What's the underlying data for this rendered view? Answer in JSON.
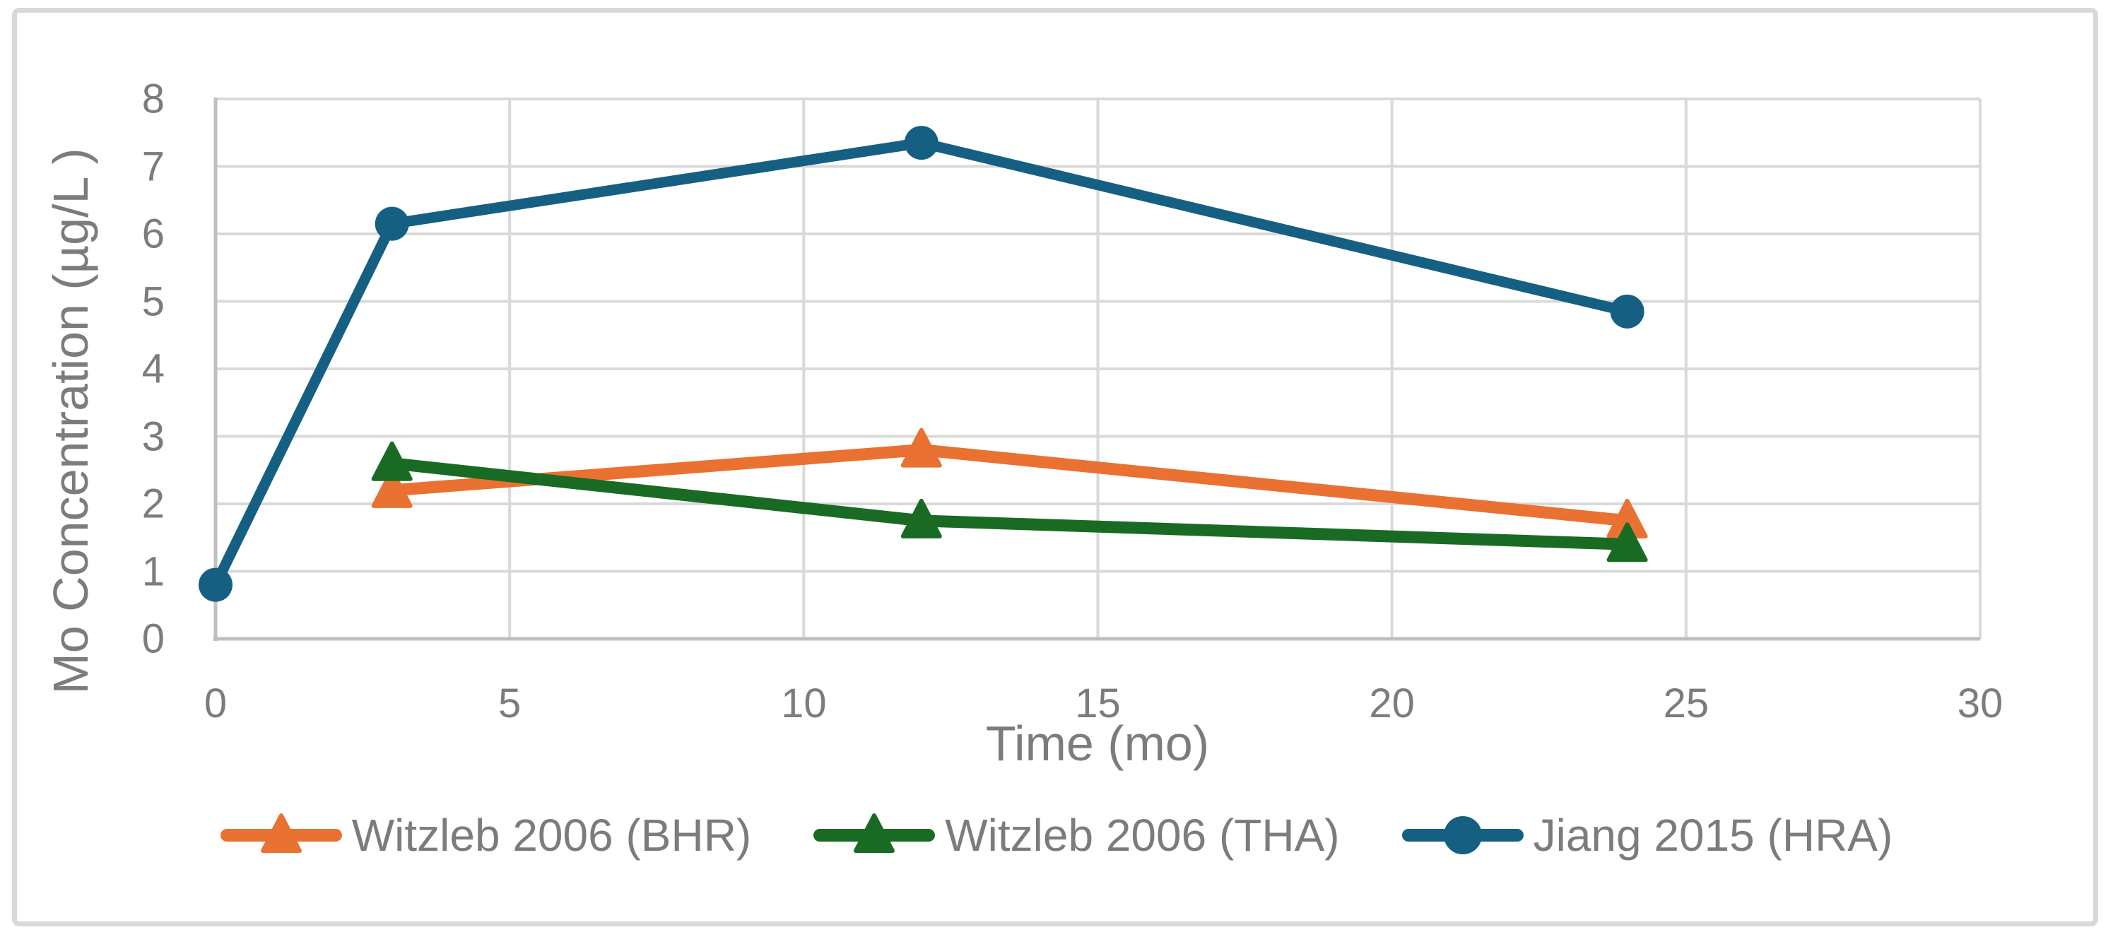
{
  "chart_data": {
    "type": "line",
    "title": "",
    "xlabel": "Time (mo)",
    "ylabel": "Mo Concentration (µg/L )",
    "xlim": [
      0,
      30
    ],
    "ylim": [
      0,
      8
    ],
    "x_ticks": [
      0,
      5,
      10,
      15,
      20,
      25,
      30
    ],
    "y_ticks": [
      0,
      1,
      2,
      3,
      4,
      5,
      6,
      7,
      8
    ],
    "grid": true,
    "legend_position": "bottom",
    "series": [
      {
        "name": "Witzleb 2006 (BHR)",
        "color": "#E97132",
        "marker": "triangle",
        "x": [
          3,
          12,
          24
        ],
        "y": [
          2.2,
          2.8,
          1.75
        ]
      },
      {
        "name": "Witzleb 2006 (THA)",
        "color": "#196B24",
        "marker": "triangle",
        "x": [
          3,
          12,
          24
        ],
        "y": [
          2.6,
          1.75,
          1.4
        ]
      },
      {
        "name": "Jiang 2015 (HRA)",
        "color": "#156082",
        "marker": "circle",
        "x": [
          0,
          3,
          12,
          24
        ],
        "y": [
          0.8,
          6.15,
          7.35,
          4.85
        ]
      }
    ],
    "style": {
      "gridline_color": "#D9D9D9",
      "axis_line_color": "#BFBFBF",
      "text_color": "#7C7C7C",
      "border_color": "#D9D9D9",
      "background": "#FFFFFF"
    }
  }
}
